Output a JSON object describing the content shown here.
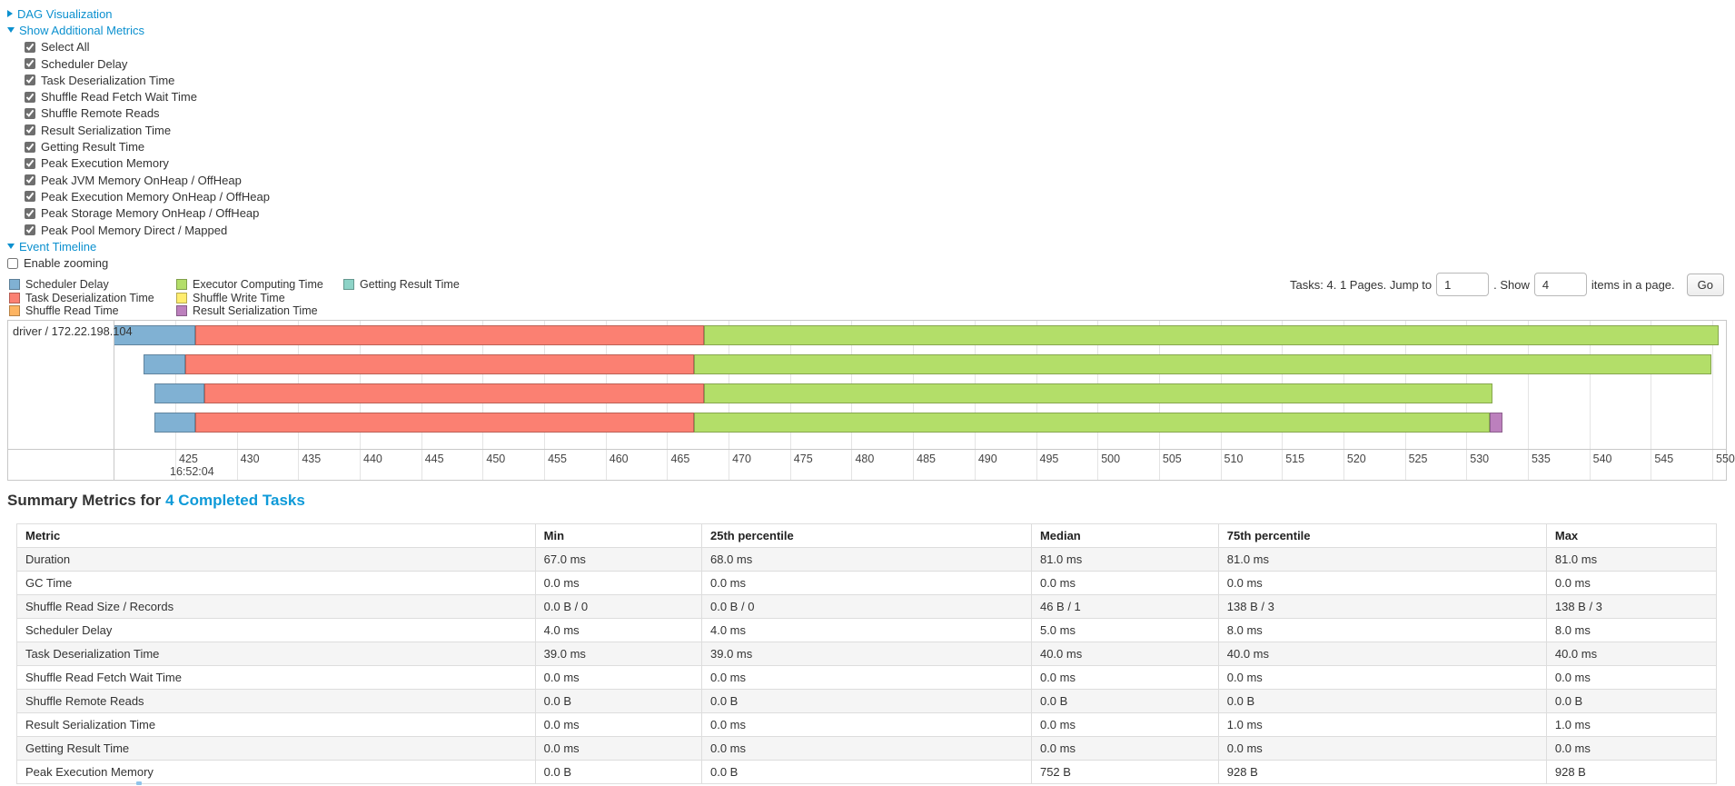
{
  "toggles": {
    "dag": "DAG Visualization",
    "metrics": "Show Additional Metrics",
    "timeline": "Event Timeline"
  },
  "metric_checkboxes": [
    "Select All",
    "Scheduler Delay",
    "Task Deserialization Time",
    "Shuffle Read Fetch Wait Time",
    "Shuffle Remote Reads",
    "Result Serialization Time",
    "Getting Result Time",
    "Peak Execution Memory",
    "Peak JVM Memory OnHeap / OffHeap",
    "Peak Execution Memory OnHeap / OffHeap",
    "Peak Storage Memory OnHeap / OffHeap",
    "Peak Pool Memory Direct / Mapped"
  ],
  "enable_zooming": {
    "label": "Enable zooming",
    "checked": false
  },
  "legend_columns": [
    [
      {
        "label": "Scheduler Delay",
        "color": "#80B1D3"
      },
      {
        "label": "Task Deserialization Time",
        "color": "#FB8072"
      },
      {
        "label": "Shuffle Read Time",
        "color": "#FDB462"
      }
    ],
    [
      {
        "label": "Executor Computing Time",
        "color": "#B3DE69"
      },
      {
        "label": "Shuffle Write Time",
        "color": "#FFED6F"
      },
      {
        "label": "Result Serialization Time",
        "color": "#BC80BD"
      }
    ],
    [
      {
        "label": "Getting Result Time",
        "color": "#8DD3C7"
      }
    ]
  ],
  "pagination": {
    "prefix": "Tasks: 4. 1 Pages. Jump to",
    "jump_value": "1",
    "mid": ". Show",
    "show_value": "4",
    "suffix": "items in a page.",
    "go": "Go"
  },
  "chart_data": {
    "type": "timeline",
    "row_label": "driver / 172.22.198.104",
    "x_axis": {
      "tick_min": 425,
      "tick_max": 550,
      "tick_step": 5,
      "unit": "ms",
      "time_anchor_label": "16:52:04"
    },
    "colors": {
      "scheduler-delay": "#80B1D3",
      "task-deserialization": "#FB8072",
      "shuffle-read": "#FDB462",
      "executor-computing": "#B3DE69",
      "shuffle-write": "#FFED6F",
      "result-serialization": "#BC80BD",
      "getting-result": "#8DD3C7"
    },
    "tasks": [
      {
        "segments": [
          {
            "metric": "scheduler-delay",
            "from": 420.0,
            "to": 426.6
          },
          {
            "metric": "task-deserialization",
            "from": 426.6,
            "to": 468.0
          },
          {
            "metric": "executor-computing",
            "from": 468.0,
            "to": 550.5
          }
        ]
      },
      {
        "segments": [
          {
            "metric": "scheduler-delay",
            "from": 422.4,
            "to": 425.8
          },
          {
            "metric": "task-deserialization",
            "from": 425.8,
            "to": 467.2
          },
          {
            "metric": "executor-computing",
            "from": 467.2,
            "to": 549.9
          }
        ]
      },
      {
        "segments": [
          {
            "metric": "scheduler-delay",
            "from": 423.3,
            "to": 427.4
          },
          {
            "metric": "task-deserialization",
            "from": 427.4,
            "to": 468.0
          },
          {
            "metric": "executor-computing",
            "from": 468.0,
            "to": 532.1
          }
        ]
      },
      {
        "segments": [
          {
            "metric": "scheduler-delay",
            "from": 423.3,
            "to": 426.6
          },
          {
            "metric": "task-deserialization",
            "from": 426.6,
            "to": 467.2
          },
          {
            "metric": "executor-computing",
            "from": 467.2,
            "to": 531.9
          },
          {
            "metric": "result-serialization",
            "from": 531.9,
            "to": 532.9
          }
        ]
      }
    ]
  },
  "summary": {
    "title": "Summary Metrics for",
    "title_link": "4 Completed Tasks",
    "headers": [
      "Metric",
      "Min",
      "25th percentile",
      "Median",
      "75th percentile",
      "Max"
    ],
    "rows": [
      [
        "Duration",
        "67.0 ms",
        "68.0 ms",
        "81.0 ms",
        "81.0 ms",
        "81.0 ms"
      ],
      [
        "GC Time",
        "0.0 ms",
        "0.0 ms",
        "0.0 ms",
        "0.0 ms",
        "0.0 ms"
      ],
      [
        "Shuffle Read Size / Records",
        "0.0 B / 0",
        "0.0 B / 0",
        "46 B / 1",
        "138 B / 3",
        "138 B / 3"
      ],
      [
        "Scheduler Delay",
        "4.0 ms",
        "4.0 ms",
        "5.0 ms",
        "8.0 ms",
        "8.0 ms"
      ],
      [
        "Task Deserialization Time",
        "39.0 ms",
        "39.0 ms",
        "40.0 ms",
        "40.0 ms",
        "40.0 ms"
      ],
      [
        "Shuffle Read Fetch Wait Time",
        "0.0 ms",
        "0.0 ms",
        "0.0 ms",
        "0.0 ms",
        "0.0 ms"
      ],
      [
        "Shuffle Remote Reads",
        "0.0 B",
        "0.0 B",
        "0.0 B",
        "0.0 B",
        "0.0 B"
      ],
      [
        "Result Serialization Time",
        "0.0 ms",
        "0.0 ms",
        "0.0 ms",
        "1.0 ms",
        "1.0 ms"
      ],
      [
        "Getting Result Time",
        "0.0 ms",
        "0.0 ms",
        "0.0 ms",
        "0.0 ms",
        "0.0 ms"
      ],
      [
        "Peak Execution Memory",
        "0.0 B",
        "0.0 B",
        "752 B",
        "928 B",
        "928 B"
      ]
    ],
    "column_widths_pct": [
      30.5,
      9.8,
      19.4,
      11.0,
      19.3,
      10.0
    ]
  },
  "misc": {
    "clipped_fragment_color": "#8fc3e9"
  }
}
